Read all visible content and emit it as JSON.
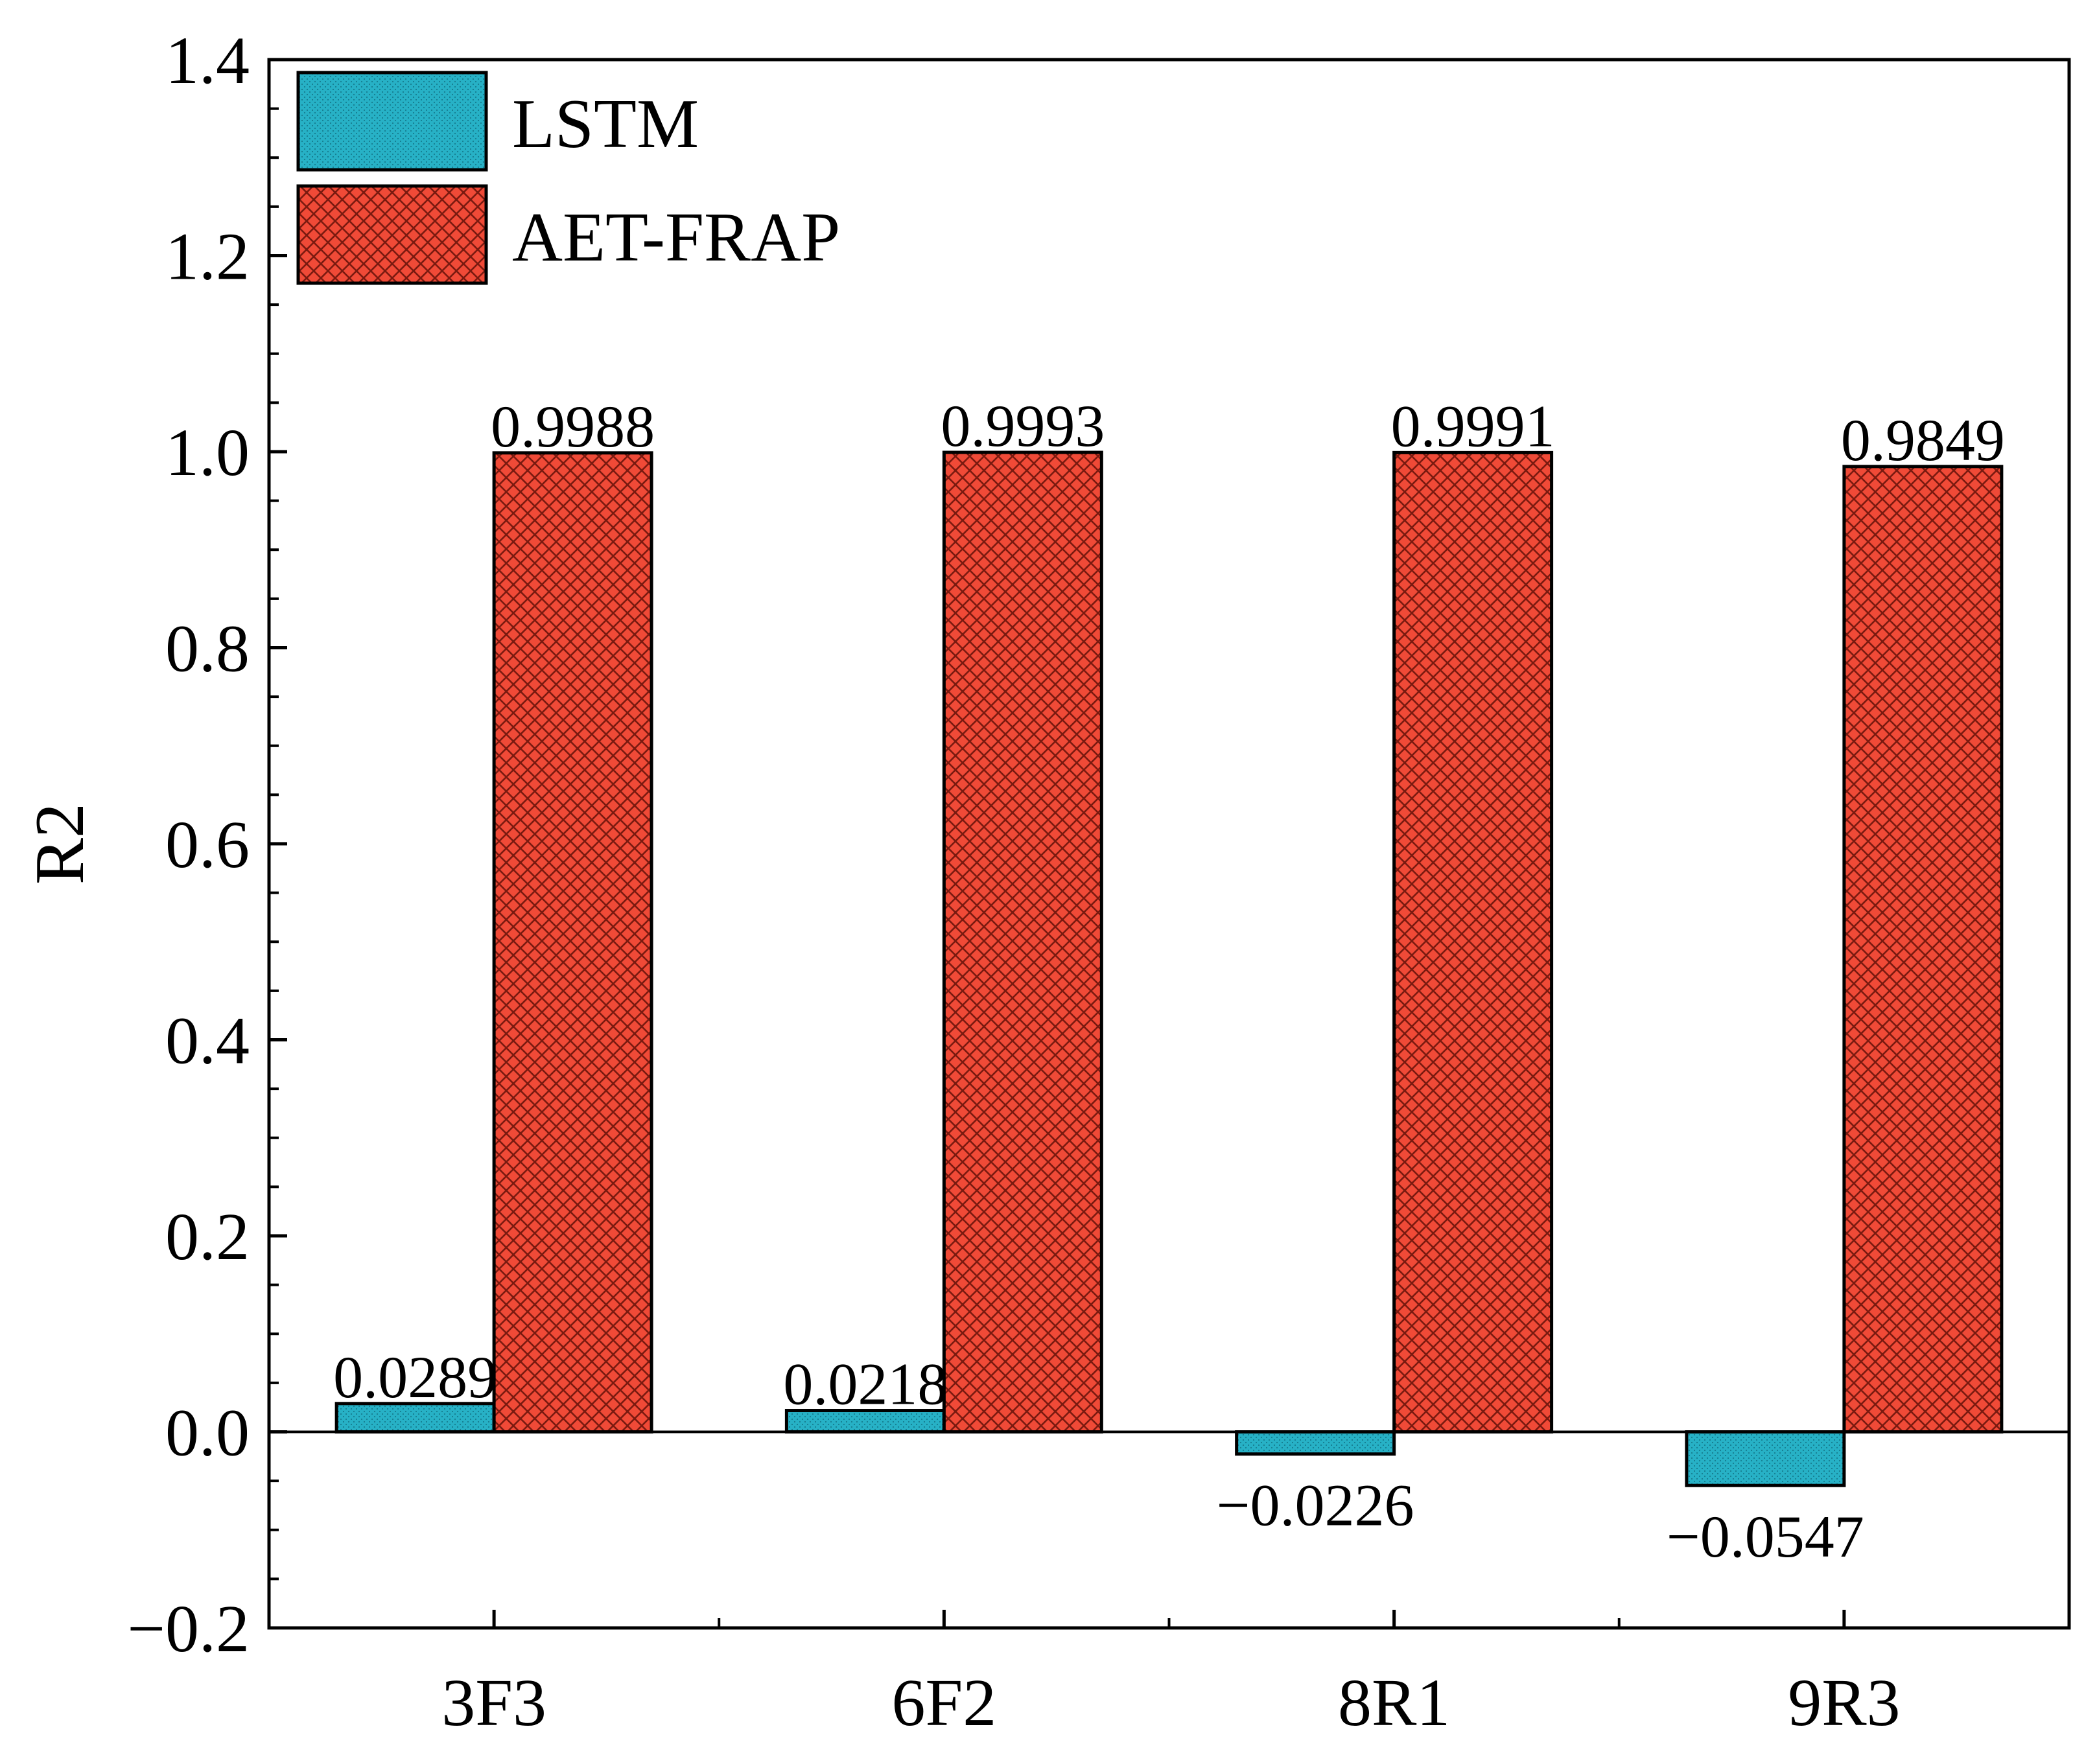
{
  "chart_data": {
    "type": "bar",
    "categories": [
      "3F3",
      "6F2",
      "8R1",
      "9R3"
    ],
    "series": [
      {
        "name": "LSTM",
        "values": [
          0.0289,
          0.0218,
          -0.0226,
          -0.0547
        ],
        "labels": [
          "0.0289",
          "0.0218",
          "−0.0226",
          "−0.0547"
        ],
        "color": "#27B1C6",
        "pattern": "dots"
      },
      {
        "name": "AET-FRAP",
        "values": [
          0.9988,
          0.9993,
          0.9991,
          0.9849
        ],
        "labels": [
          "0.9988",
          "0.9993",
          "0.9991",
          "0.9849"
        ],
        "color": "#F04A37",
        "pattern": "crosshatch"
      }
    ],
    "xlabel": "",
    "ylabel": "R2",
    "ylim": [
      -0.2,
      1.4
    ],
    "yticks": [
      -0.2,
      0.0,
      0.2,
      0.4,
      0.6,
      0.8,
      1.0,
      1.2,
      1.4
    ],
    "ytick_labels": [
      "−0.2",
      "0.0",
      "0.2",
      "0.4",
      "0.6",
      "0.8",
      "1.0",
      "1.2",
      "1.4"
    ],
    "grid": false,
    "zero_line": true,
    "legend_position": "top-left"
  }
}
